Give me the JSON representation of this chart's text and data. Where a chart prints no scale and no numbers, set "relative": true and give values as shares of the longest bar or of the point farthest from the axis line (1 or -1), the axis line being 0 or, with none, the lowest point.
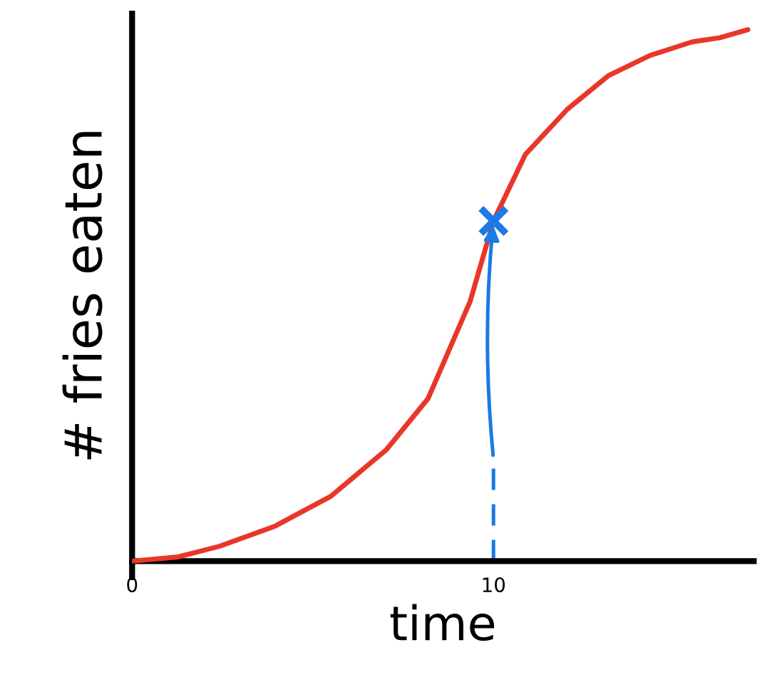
{
  "chart_data": {
    "type": "line",
    "xlabel": "time",
    "ylabel": "# fries eaten",
    "relative": true,
    "xlim": [
      0,
      17.2
    ],
    "xticks": [
      0,
      10
    ],
    "grid": false,
    "legend": false,
    "series": [
      {
        "color": "#e8372a",
        "marker": "none",
        "x": [
          0,
          1.27,
          2.42,
          3.96,
          5.5,
          7.04,
          8.19,
          9.35,
          10,
          10.88,
          12.04,
          13.19,
          14.35,
          15.5,
          16.27,
          17.04
        ],
        "values": [
          0,
          0.008,
          0.028,
          0.066,
          0.122,
          0.21,
          0.306,
          0.488,
          0.64,
          0.765,
          0.85,
          0.914,
          0.952,
          0.977,
          0.985,
          1.0
        ]
      },
      {
        "type": "scatter",
        "color": "#1a7ae6",
        "marker": "cross",
        "x": [
          10
        ],
        "values": [
          0.64
        ]
      }
    ]
  }
}
